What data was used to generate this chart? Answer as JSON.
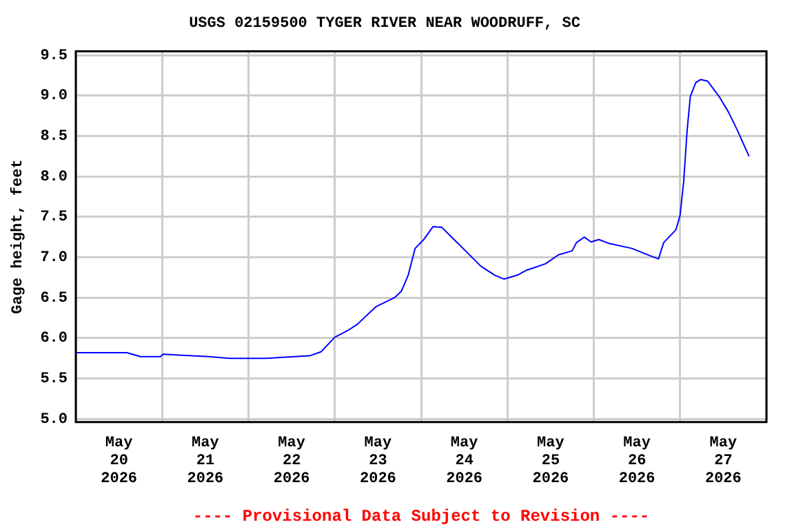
{
  "chart_data": {
    "type": "line",
    "title": "USGS 02159500 TYGER RIVER NEAR WOODRUFF, SC",
    "ylabel": "Gage height, feet",
    "annotations": [
      "---- Provisional Data Subject to Revision ----"
    ],
    "x": [
      "2026-05-20T00:00",
      "2026-05-20T14:10",
      "2026-05-20T18:00",
      "2026-05-20T23:30",
      "2026-05-21T00:15",
      "2026-05-21T13:00",
      "2026-05-21T18:45",
      "2026-05-22T04:50",
      "2026-05-22T08:40",
      "2026-05-22T17:00",
      "2026-05-22T20:10",
      "2026-05-23T00:00",
      "2026-05-23T03:50",
      "2026-05-23T06:15",
      "2026-05-23T11:30",
      "2026-05-23T16:35",
      "2026-05-23T18:30",
      "2026-05-23T20:25",
      "2026-05-23T22:20",
      "2026-05-24T00:45",
      "2026-05-24T03:20",
      "2026-05-24T05:45",
      "2026-05-24T09:10",
      "2026-05-24T13:00",
      "2026-05-24T16:35",
      "2026-05-24T20:25",
      "2026-05-24T23:00",
      "2026-05-25T02:50",
      "2026-05-25T05:15",
      "2026-05-25T06:40",
      "2026-05-25T10:35",
      "2026-05-25T14:10",
      "2026-05-25T18:00",
      "2026-05-25T19:10",
      "2026-05-25T21:20",
      "2026-05-25T23:15",
      "2026-05-26T01:25",
      "2026-05-26T04:20",
      "2026-05-26T10:35",
      "2026-05-26T15:35",
      "2026-05-26T18:00",
      "2026-05-26T19:25",
      "2026-05-26T22:50",
      "2026-05-27T00:00",
      "2026-05-27T01:00",
      "2026-05-27T01:55",
      "2026-05-27T02:50",
      "2026-05-27T04:20",
      "2026-05-27T05:45",
      "2026-05-27T07:40",
      "2026-05-27T10:50",
      "2026-05-27T13:25",
      "2026-05-27T15:50",
      "2026-05-27T19:10"
    ],
    "series": [
      {
        "color": "#0000ff",
        "values": [
          5.82,
          5.82,
          5.77,
          5.77,
          5.8,
          5.77,
          5.75,
          5.75,
          5.76,
          5.78,
          5.83,
          6.01,
          6.1,
          6.17,
          6.39,
          6.5,
          6.58,
          6.78,
          7.11,
          7.22,
          7.38,
          7.37,
          7.22,
          7.05,
          6.89,
          6.78,
          6.73,
          6.78,
          6.84,
          6.86,
          6.92,
          7.03,
          7.08,
          7.18,
          7.25,
          7.19,
          7.22,
          7.17,
          7.11,
          7.02,
          6.98,
          7.18,
          7.34,
          7.52,
          7.94,
          8.55,
          8.99,
          9.16,
          9.2,
          9.18,
          8.99,
          8.8,
          8.58,
          8.25
        ]
      }
    ],
    "xlim": [
      "2026-05-20T00:00",
      "2026-05-28T00:00"
    ],
    "xticks": [
      {
        "value": "2026-05-20T00:00",
        "label": null
      },
      {
        "value": "2026-05-20T12:00",
        "label": "May\n20\n2026"
      },
      {
        "value": "2026-05-21T00:00",
        "label": null
      },
      {
        "value": "2026-05-21T12:00",
        "label": "May\n21\n2026"
      },
      {
        "value": "2026-05-22T00:00",
        "label": null
      },
      {
        "value": "2026-05-22T12:00",
        "label": "May\n22\n2026"
      },
      {
        "value": "2026-05-23T00:00",
        "label": null
      },
      {
        "value": "2026-05-23T12:00",
        "label": "May\n23\n2026"
      },
      {
        "value": "2026-05-24T00:00",
        "label": null
      },
      {
        "value": "2026-05-24T12:00",
        "label": "May\n24\n2026"
      },
      {
        "value": "2026-05-25T00:00",
        "label": null
      },
      {
        "value": "2026-05-25T12:00",
        "label": "May\n25\n2026"
      },
      {
        "value": "2026-05-26T00:00",
        "label": null
      },
      {
        "value": "2026-05-26T12:00",
        "label": "May\n26\n2026"
      },
      {
        "value": "2026-05-27T00:00",
        "label": null
      },
      {
        "value": "2026-05-27T12:00",
        "label": "May\n27\n2026"
      },
      {
        "value": "2026-05-28T00:00",
        "label": null
      }
    ],
    "ylim": [
      4.96,
      9.55
    ],
    "yticks": [
      {
        "value": 5,
        "label": "5.0"
      },
      {
        "value": 5.5,
        "label": "5.5"
      },
      {
        "value": 6,
        "label": "6.0"
      },
      {
        "value": 6.5,
        "label": "6.5"
      },
      {
        "value": 7,
        "label": "7.0"
      },
      {
        "value": 7.5,
        "label": "7.5"
      },
      {
        "value": 8,
        "label": "8.0"
      },
      {
        "value": 8.5,
        "label": "8.5"
      },
      {
        "value": 9,
        "label": "9.0"
      },
      {
        "value": 9.5,
        "label": "9.5"
      }
    ],
    "grid": true,
    "legend": false,
    "marker": "none",
    "line_style": "solid"
  }
}
